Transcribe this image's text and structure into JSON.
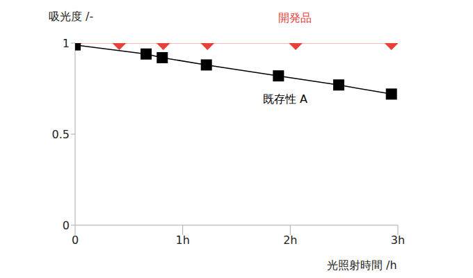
{
  "chart_data": {
    "type": "line",
    "x_label": "光照射時間 /h",
    "y_label": "吸光度 /-",
    "xlim": [
      0,
      3
    ],
    "xticks": [
      0,
      {
        "value": 1,
        "label": "1h"
      },
      {
        "value": 2,
        "label": "2h"
      },
      {
        "value": 3,
        "label": "3h"
      }
    ],
    "ylim": [
      0,
      1
    ],
    "yticks": [
      0,
      0.5,
      1
    ],
    "grid": false,
    "series": [
      {
        "name": "開発品",
        "color": "#e8413a",
        "marker": "diamond",
        "x": [
          0,
          0.41,
          0.82,
          1.23,
          2.05,
          2.94
        ],
        "values": [
          1,
          1,
          1,
          1,
          1,
          1
        ]
      },
      {
        "name": "既存性 A",
        "color": "#000000",
        "marker": "square",
        "x": [
          0,
          0.66,
          0.81,
          1.22,
          1.89,
          2.45,
          2.94
        ],
        "values": [
          0.99,
          0.94,
          0.92,
          0.88,
          0.82,
          0.77,
          0.72
        ]
      }
    ]
  }
}
